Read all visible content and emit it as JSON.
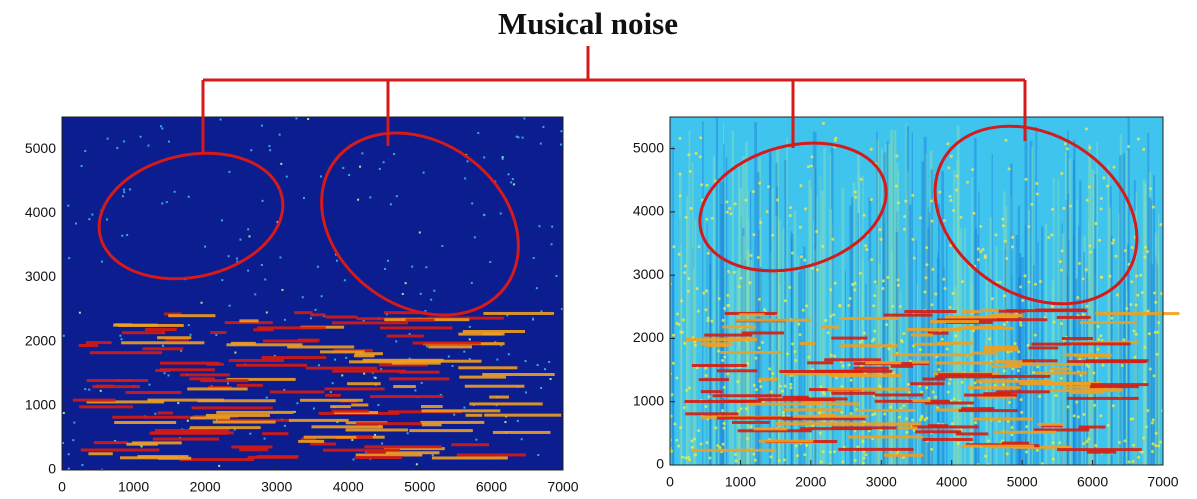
{
  "title": "Musical noise",
  "chart_data": [
    {
      "type": "heatmap",
      "xlim": [
        0,
        7000
      ],
      "xticks": [
        0,
        1000,
        2000,
        3000,
        4000,
        5000,
        6000,
        7000
      ],
      "ylim": [
        0,
        5500
      ],
      "yticks": [
        0,
        1000,
        2000,
        3000,
        4000,
        5000
      ],
      "color": "#0b1d8f"
    },
    {
      "type": "heatmap",
      "xlim": [
        0,
        7000
      ],
      "xticks": [
        0,
        1000,
        2000,
        3000,
        4000,
        5000,
        6000,
        7000
      ],
      "ylim": [
        0,
        5500
      ],
      "yticks": [
        0,
        1000,
        2000,
        3000,
        4000,
        5000
      ],
      "color": "#3fc4ee"
    }
  ]
}
